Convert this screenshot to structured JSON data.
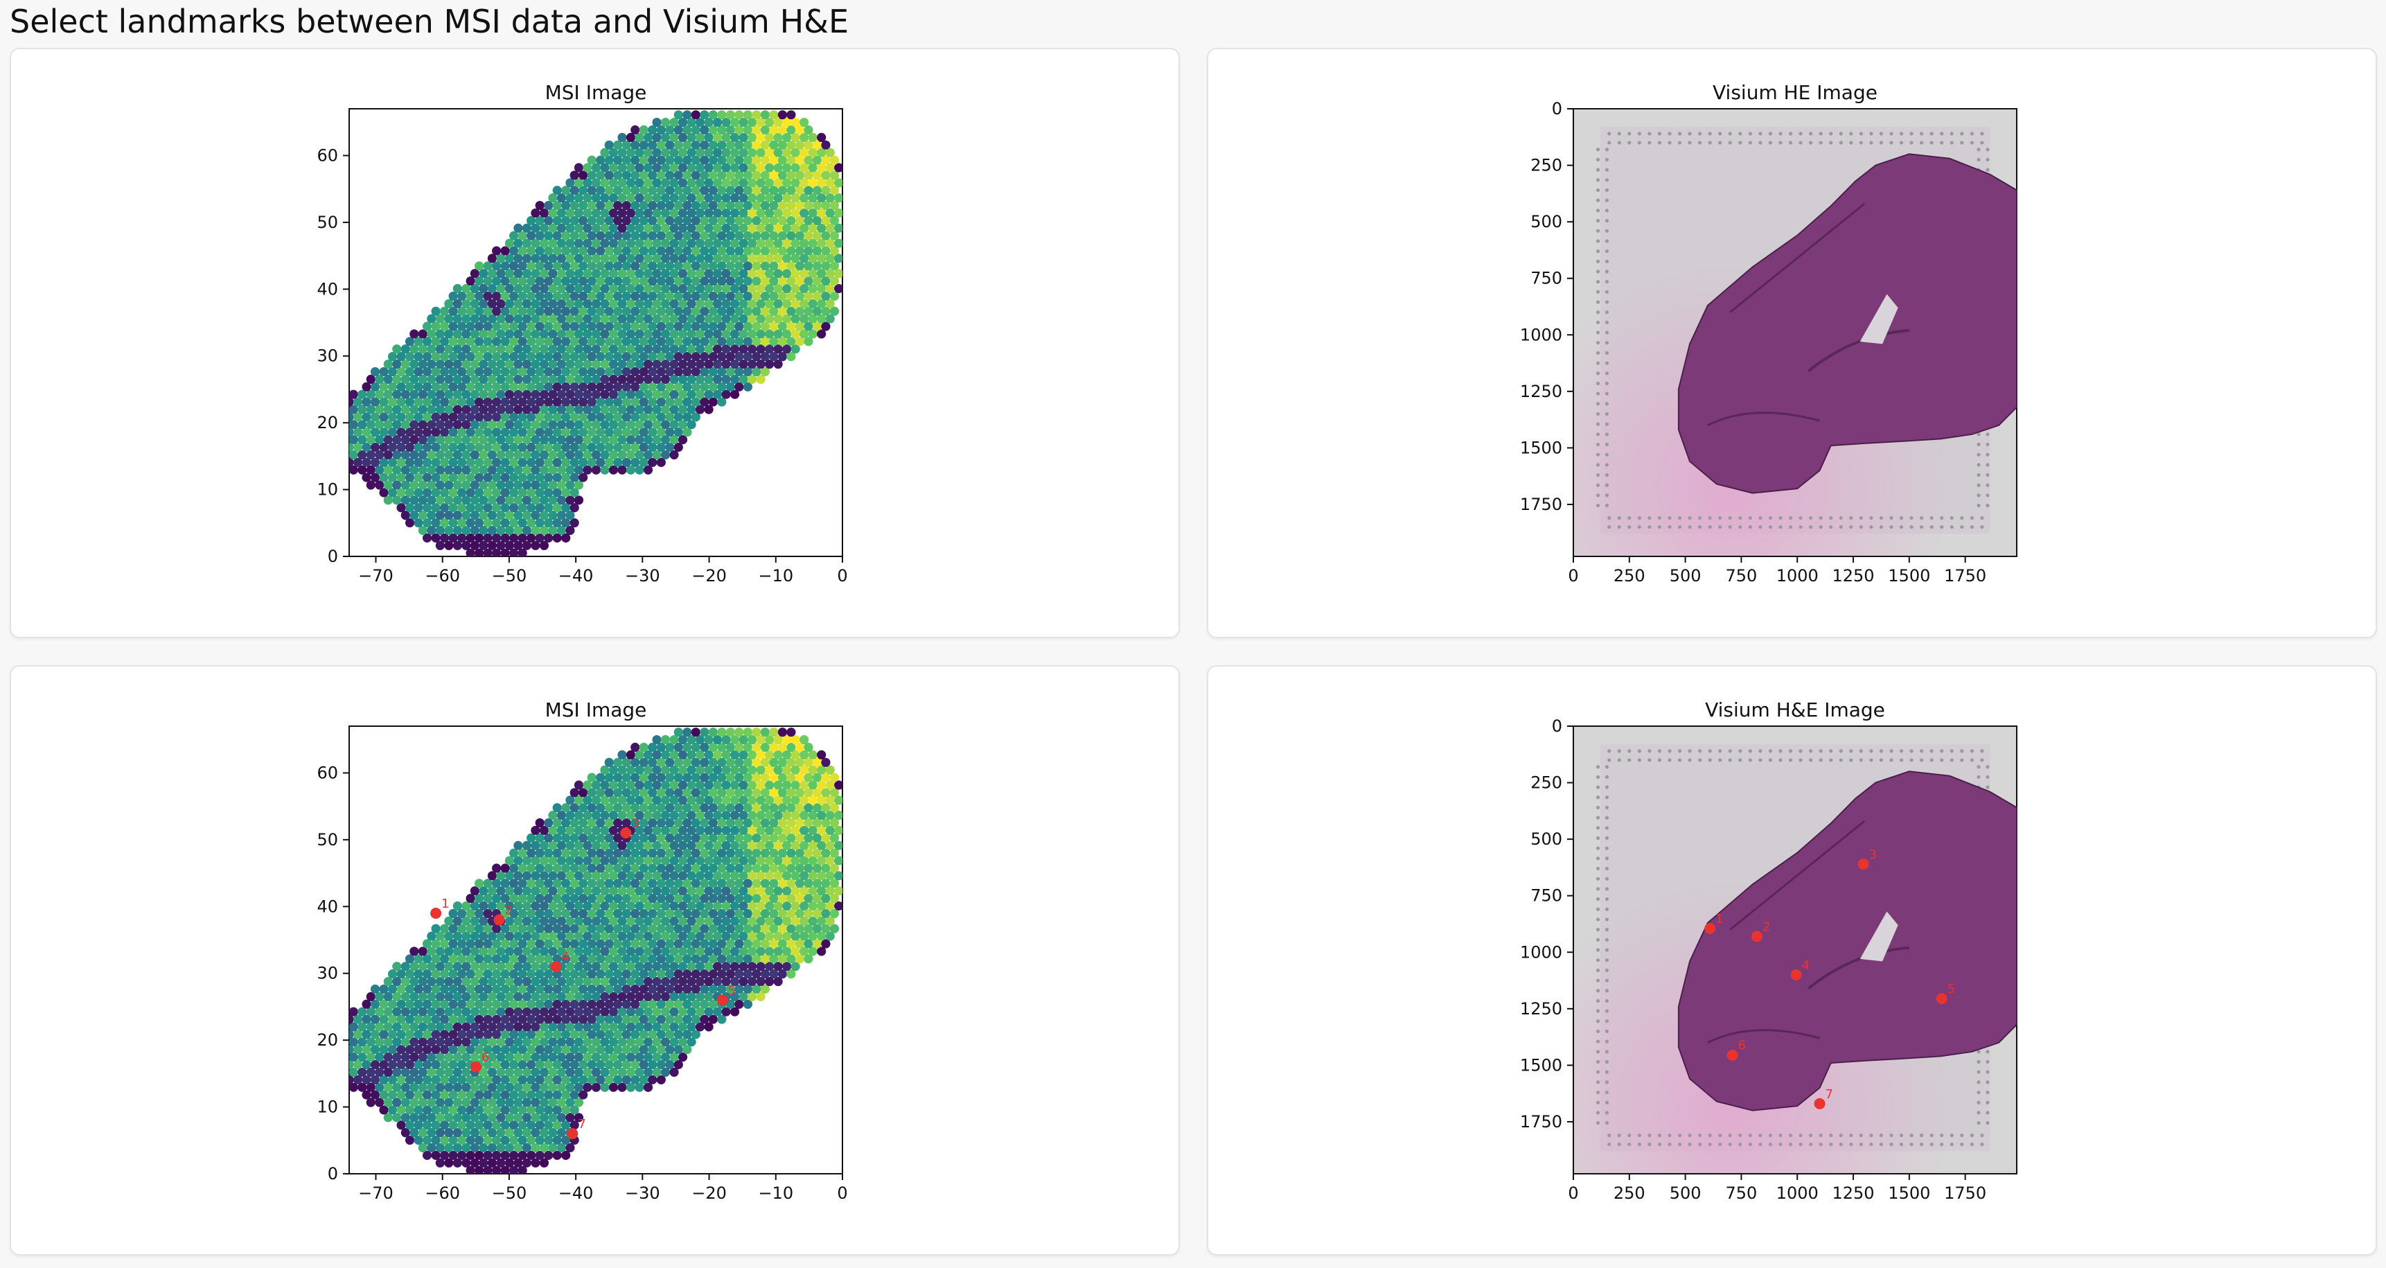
{
  "page": {
    "title": "Select landmarks between MSI data and Visium H&E"
  },
  "colors": {
    "card_background": "#ffffff",
    "card_border": "#e3e3e3",
    "page_background": "#f7f7f7",
    "landmark": "#e8342e",
    "tissue": "#7d3a78",
    "slide": "#d6d6d6",
    "msi_colormap": "viridis"
  },
  "panels": {
    "msi_top": {
      "title": "MSI Image"
    },
    "he_top": {
      "title": "Visium HE Image"
    },
    "msi_bottom": {
      "title": "MSI Image"
    },
    "he_bottom": {
      "title": "Visium H&E Image"
    }
  },
  "chart_data": [
    {
      "id": "msi_top",
      "type": "heatmap",
      "title": "MSI Image",
      "xlim": [
        -74,
        0
      ],
      "ylim": [
        0,
        67
      ],
      "xticks": [
        -70,
        -60,
        -50,
        -40,
        -30,
        -20,
        -10,
        0
      ],
      "yticks": [
        0,
        10,
        20,
        30,
        40,
        50,
        60
      ],
      "colormap": "viridis",
      "landmarks": []
    },
    {
      "id": "he_top",
      "type": "image",
      "title": "Visium HE Image",
      "xlim": [
        0,
        1980
      ],
      "ylim": [
        1980,
        0
      ],
      "xticks": [
        0,
        250,
        500,
        750,
        1000,
        1250,
        1500,
        1750
      ],
      "yticks": [
        0,
        250,
        500,
        750,
        1000,
        1250,
        1500,
        1750
      ],
      "landmarks": []
    },
    {
      "id": "msi_bottom",
      "type": "heatmap",
      "title": "MSI Image",
      "xlim": [
        -74,
        0
      ],
      "ylim": [
        0,
        67
      ],
      "xticks": [
        -70,
        -60,
        -50,
        -40,
        -30,
        -20,
        -10,
        0
      ],
      "yticks": [
        0,
        10,
        20,
        30,
        40,
        50,
        60
      ],
      "colormap": "viridis",
      "landmarks": [
        {
          "label": "1",
          "x": -61,
          "y": 39
        },
        {
          "label": "2",
          "x": -51.5,
          "y": 38
        },
        {
          "label": "3",
          "x": -32.5,
          "y": 51
        },
        {
          "label": "4",
          "x": -43,
          "y": 31
        },
        {
          "label": "5",
          "x": -18,
          "y": 26
        },
        {
          "label": "6",
          "x": -55,
          "y": 16
        },
        {
          "label": "7",
          "x": -40.5,
          "y": 6
        }
      ]
    },
    {
      "id": "he_bottom",
      "type": "image",
      "title": "Visium H&E Image",
      "xlim": [
        0,
        1980
      ],
      "ylim": [
        1980,
        0
      ],
      "xticks": [
        0,
        250,
        500,
        750,
        1000,
        1250,
        1500,
        1750
      ],
      "yticks": [
        0,
        250,
        500,
        750,
        1000,
        1250,
        1500,
        1750
      ],
      "landmarks": [
        {
          "label": "1",
          "x": 610,
          "y": 895
        },
        {
          "label": "2",
          "x": 820,
          "y": 930
        },
        {
          "label": "3",
          "x": 1295,
          "y": 610
        },
        {
          "label": "4",
          "x": 995,
          "y": 1100
        },
        {
          "label": "5",
          "x": 1645,
          "y": 1205
        },
        {
          "label": "6",
          "x": 710,
          "y": 1455
        },
        {
          "label": "7",
          "x": 1100,
          "y": 1670
        }
      ]
    }
  ]
}
